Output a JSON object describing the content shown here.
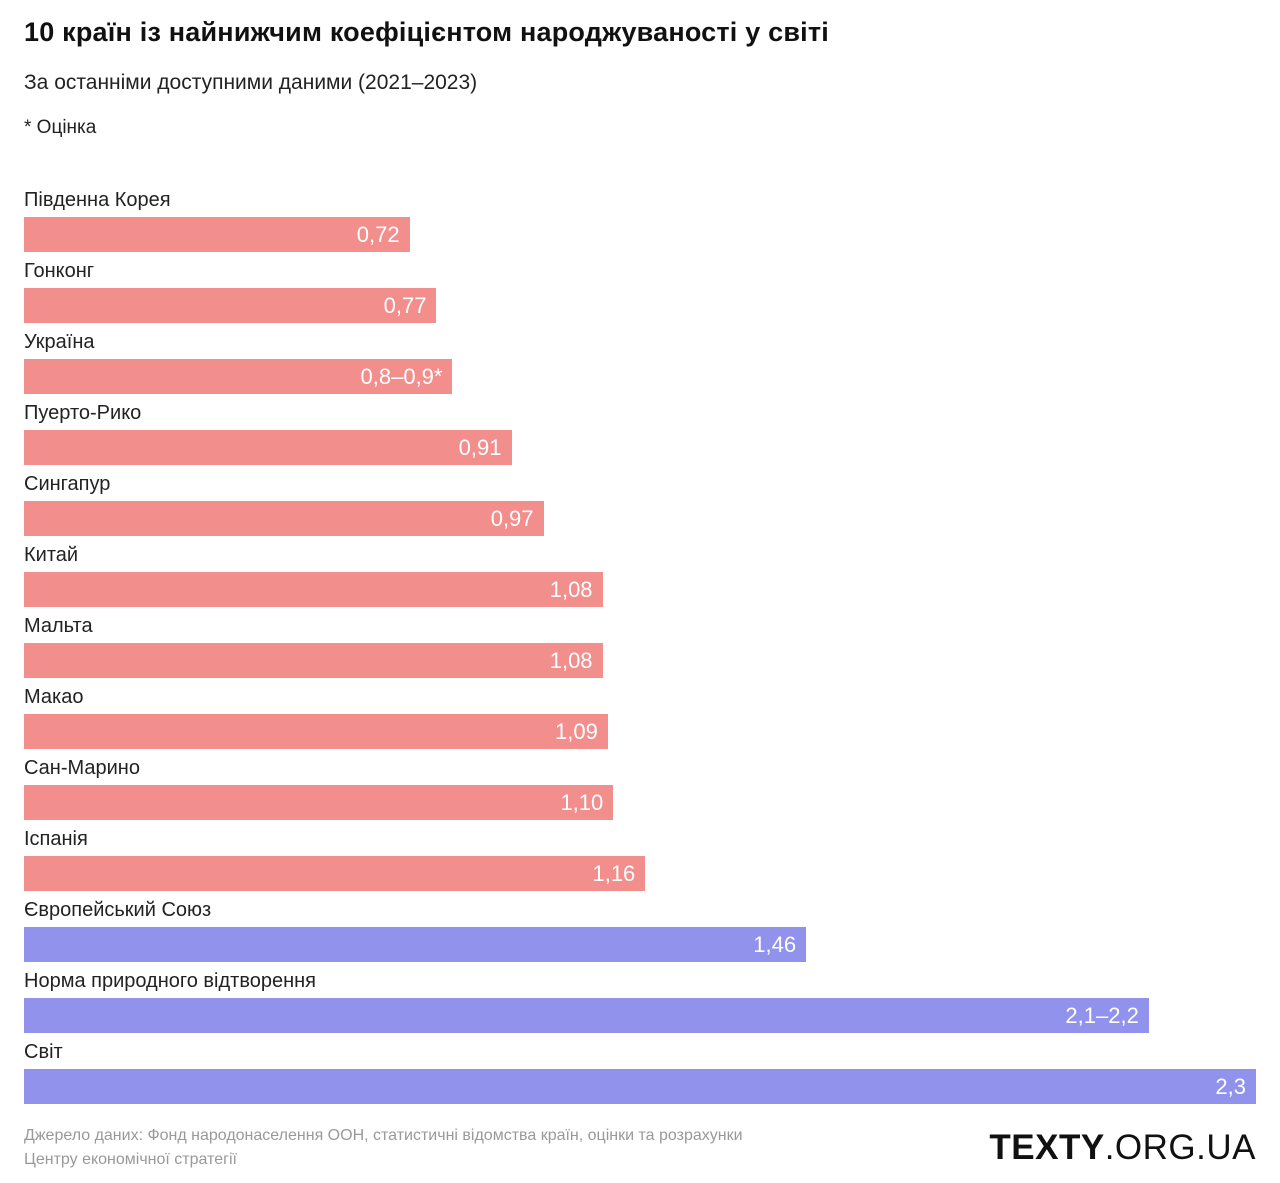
{
  "header": {
    "title": "10 країн із найнижчим коефіцієнтом народжуваності у світі",
    "subtitle": "За останніми доступними даними (2021–2023)",
    "note": "* Оцінка"
  },
  "chart_data": {
    "type": "bar",
    "orientation": "horizontal",
    "title": "10 країн із найнижчим коефіцієнтом народжуваності у світі",
    "xlim": [
      0,
      2.3
    ],
    "grid": false,
    "legend": false,
    "categories": [
      "Південна Корея",
      "Гонконг",
      "Україна",
      "Пуерто-Рико",
      "Сингапур",
      "Китай",
      "Мальта",
      "Макао",
      "Сан-Марино",
      "Іспанія",
      "Європейський Союз",
      "Норма природного відтворення",
      "Світ"
    ],
    "values": [
      0.72,
      0.77,
      0.8,
      0.91,
      0.97,
      1.08,
      1.08,
      1.09,
      1.1,
      1.16,
      1.46,
      2.1,
      2.3
    ],
    "value_labels": [
      "0,72",
      "0,77",
      "0,8–0,9*",
      "0,91",
      "0,97",
      "1,08",
      "1,08",
      "1,09",
      "1,10",
      "1,16",
      "1,46",
      "2,1–2,2",
      "2,3"
    ],
    "bar_color_keys": [
      "pink",
      "pink",
      "pink",
      "pink",
      "pink",
      "pink",
      "pink",
      "pink",
      "pink",
      "pink",
      "purple",
      "purple",
      "purple"
    ],
    "colors": {
      "pink": "#F28F8D",
      "purple": "#9192EC"
    }
  },
  "footer": {
    "source_line1": "Джерело даних: Фонд народонаселення ООН, статистичні відомства країн, оцінки та розрахунки",
    "source_line2": "Центру економічної стратегії",
    "logo_bold": "TEXTY",
    "logo_light": ".ORG.UA"
  }
}
